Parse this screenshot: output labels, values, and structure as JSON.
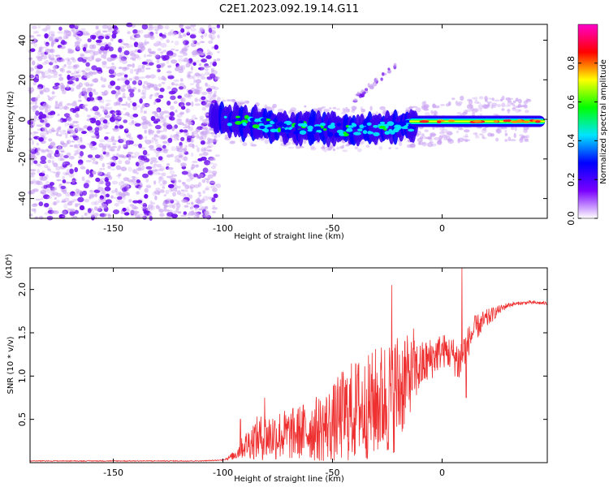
{
  "figure_title": "C2E1.2023.092.19.14.G11",
  "chart_data": [
    {
      "type": "heatmap",
      "title": "C2E1.2023.092.19.14.G11",
      "xlabel": "Height of straight line (km)",
      "ylabel": "Frequency (Hz)",
      "xlim": [
        -188,
        48
      ],
      "ylim": [
        -50,
        48
      ],
      "x_ticks": [
        -150,
        -100,
        -50,
        0
      ],
      "y_ticks": [
        -40,
        -20,
        0,
        20,
        40
      ],
      "colorbar": {
        "label": "Normalized spectral amplitude",
        "range": [
          0,
          1
        ],
        "ticks": [
          0.0,
          0.2,
          0.4,
          0.6,
          0.8
        ],
        "colors": [
          "#ffffff",
          "#7a00ff",
          "#0000ff",
          "#00e5ff",
          "#00ff00",
          "#ffff00",
          "#ff0000",
          "#ff00cc"
        ]
      },
      "regions": [
        {
          "name": "scattered noise",
          "x_range": [
            -188,
            -102
          ],
          "freq_range": [
            -50,
            48
          ],
          "amplitude": 0.05
        },
        {
          "name": "signal band",
          "x_range": [
            -102,
            46
          ],
          "center_freq_start": 0,
          "center_freq_mid": -5,
          "center_freq_end": 0,
          "amplitude_peak": 0.9
        },
        {
          "name": "echo trace",
          "x_range": [
            -40,
            -20
          ],
          "freq_range": [
            10,
            28
          ],
          "amplitude": 0.15
        }
      ]
    },
    {
      "type": "line",
      "xlabel": "Height of straight line (km)",
      "ylabel": "SNR (10 * v/v)",
      "y_multiplier_label": "(x10⁴)",
      "xlim": [
        -188,
        48
      ],
      "ylim": [
        0,
        2.25
      ],
      "x_ticks": [
        -150,
        -100,
        -50,
        0
      ],
      "y_ticks": [
        0.5,
        1.0,
        1.5,
        2.0
      ],
      "y_tick_labels": [
        "0.5",
        "1.0",
        "1.5",
        "2.0"
      ],
      "series": [
        {
          "name": "SNR",
          "color": "#ee3030",
          "x": [
            -188,
            -150,
            -110,
            -100,
            -95,
            -90,
            -85,
            -80,
            -75,
            -70,
            -65,
            -60,
            -55,
            -50,
            -45,
            -40,
            -35,
            -30,
            -25,
            -20,
            -15,
            -10,
            -5,
            0,
            5,
            8,
            10,
            15,
            20,
            25,
            30,
            35,
            40,
            48
          ],
          "values": [
            0.02,
            0.02,
            0.02,
            0.03,
            0.08,
            0.2,
            0.28,
            0.3,
            0.32,
            0.32,
            0.35,
            0.38,
            0.4,
            0.45,
            0.55,
            0.6,
            0.62,
            0.7,
            0.75,
            0.85,
            1.0,
            1.1,
            1.2,
            1.3,
            1.25,
            1.15,
            1.3,
            1.55,
            1.65,
            1.75,
            1.82,
            1.84,
            1.85,
            1.84
          ],
          "noise_amplitude": [
            0.0,
            0.0,
            0.0,
            0.0,
            0.05,
            0.15,
            0.25,
            0.28,
            0.3,
            0.3,
            0.32,
            0.36,
            0.4,
            0.45,
            0.55,
            0.6,
            0.6,
            0.65,
            0.7,
            0.7,
            0.45,
            0.3,
            0.25,
            0.2,
            0.2,
            0.3,
            0.2,
            0.15,
            0.12,
            0.06,
            0.03,
            0.02,
            0.02,
            0.02
          ],
          "spikes": [
            {
              "x": -92,
              "value": 0.5
            },
            {
              "x": -81,
              "value": 0.75
            },
            {
              "x": -38,
              "value": 1.15
            },
            {
              "x": -23,
              "value": 2.05
            },
            {
              "x": -17,
              "value": 1.4
            },
            {
              "x": -13,
              "value": 1.55
            },
            {
              "x": 9,
              "value": 2.25
            },
            {
              "x": 11,
              "value": 0.75
            }
          ]
        }
      ]
    }
  ]
}
